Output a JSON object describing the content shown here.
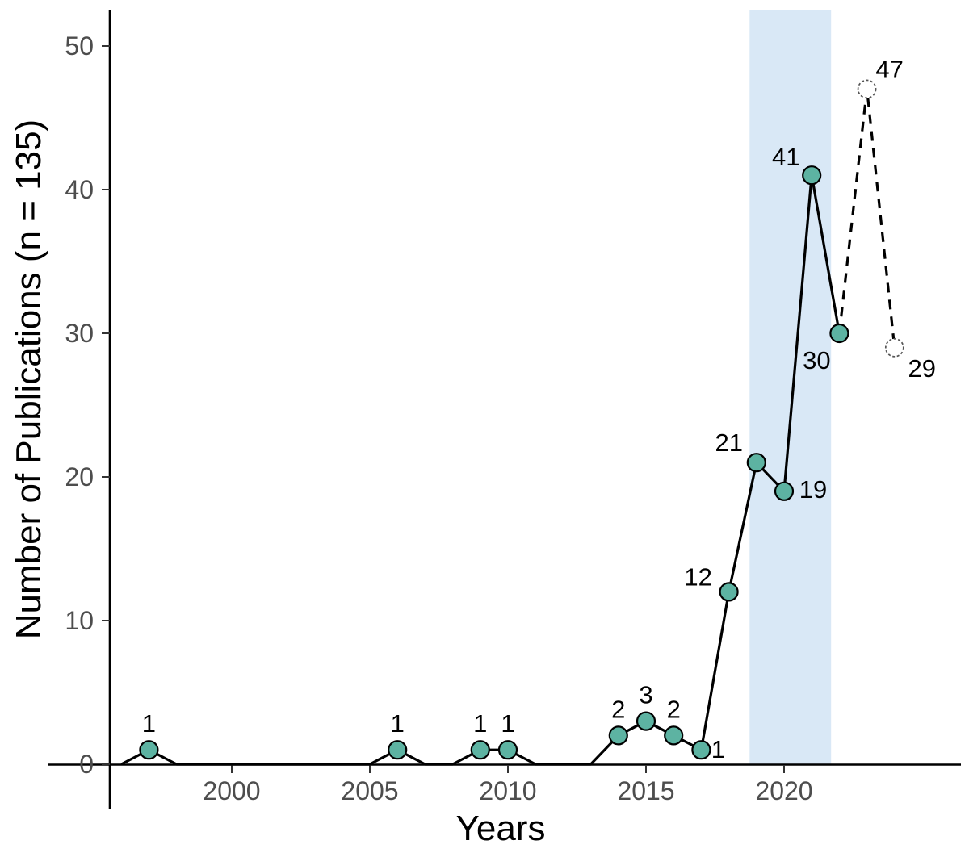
{
  "figure": {
    "background": "#ffffff"
  },
  "chart_data": {
    "type": "line",
    "title": "",
    "xlabel": "Years",
    "ylabel": "Number of Publications (n = 135)",
    "x_tick_values": [
      2000,
      2005,
      2010,
      2015,
      2020
    ],
    "x_tick_labels": [
      "2000",
      "2005",
      "2010",
      "2015",
      "2020"
    ],
    "y_tick_values": [
      0,
      10,
      20,
      30,
      40,
      50
    ],
    "y_tick_labels": [
      "0",
      "10",
      "20",
      "30",
      "40",
      "50"
    ],
    "xlim": [
      1995.6,
      2026.4
    ],
    "ylim": [
      0,
      52.5
    ],
    "grid": false,
    "legend": "none",
    "highlight_band": {
      "x_start": 2018.75,
      "x_end": 2021.7,
      "color": "#d9e8f6"
    },
    "colors": {
      "line": "#000000",
      "point_fill": "#5db3a2",
      "point_stroke": "#000000",
      "projected_stroke": "#555555",
      "axis_line": "#000000",
      "tick_text": "#4d4d4d",
      "title_text": "#000000",
      "label_text": "#000000"
    },
    "series": [
      {
        "name": "observed",
        "line_style": "solid",
        "marker": "filled-circle",
        "points": [
          {
            "x": 1996,
            "y": 0
          },
          {
            "x": 1997,
            "y": 1,
            "label": "1",
            "label_dx": 0,
            "label_dy": -22
          },
          {
            "x": 1998,
            "y": 0
          },
          {
            "x": 2005,
            "y": 0
          },
          {
            "x": 2006,
            "y": 1,
            "label": "1",
            "label_dx": 0,
            "label_dy": -22
          },
          {
            "x": 2007,
            "y": 0
          },
          {
            "x": 2008,
            "y": 0
          },
          {
            "x": 2009,
            "y": 1,
            "label": "1",
            "label_dx": 0,
            "label_dy": -22
          },
          {
            "x": 2010,
            "y": 1,
            "label": "1",
            "label_dx": 0,
            "label_dy": -22
          },
          {
            "x": 2011,
            "y": 0
          },
          {
            "x": 2013,
            "y": 0
          },
          {
            "x": 2014,
            "y": 2,
            "label": "2",
            "label_dx": 0,
            "label_dy": -22
          },
          {
            "x": 2015,
            "y": 3,
            "label": "3",
            "label_dx": 0,
            "label_dy": -22
          },
          {
            "x": 2016,
            "y": 2,
            "label": "2",
            "label_dx": 0,
            "label_dy": -22
          },
          {
            "x": 2017,
            "y": 1,
            "label": "1",
            "label_dx": 21,
            "label_dy": 10
          },
          {
            "x": 2018,
            "y": 12,
            "label": "12",
            "label_dx": -38,
            "label_dy": -8
          },
          {
            "x": 2019,
            "y": 21,
            "label": "21",
            "label_dx": -34,
            "label_dy": -14
          },
          {
            "x": 2020,
            "y": 19,
            "label": "19",
            "label_dx": 36,
            "label_dy": 8
          },
          {
            "x": 2021,
            "y": 41,
            "label": "41",
            "label_dx": -32,
            "label_dy": -12
          },
          {
            "x": 2022,
            "y": 30,
            "label": "30",
            "label_dx": -28,
            "label_dy": 44
          }
        ]
      },
      {
        "name": "projected",
        "line_style": "dashed",
        "marker": "open-dashed-circle",
        "points": [
          {
            "x": 2022,
            "y": 30
          },
          {
            "x": 2023,
            "y": 47,
            "label": "47",
            "label_dx": 28,
            "label_dy": -14
          },
          {
            "x": 2024,
            "y": 29,
            "label": "29",
            "label_dx": 34,
            "label_dy": 36
          }
        ]
      }
    ]
  }
}
